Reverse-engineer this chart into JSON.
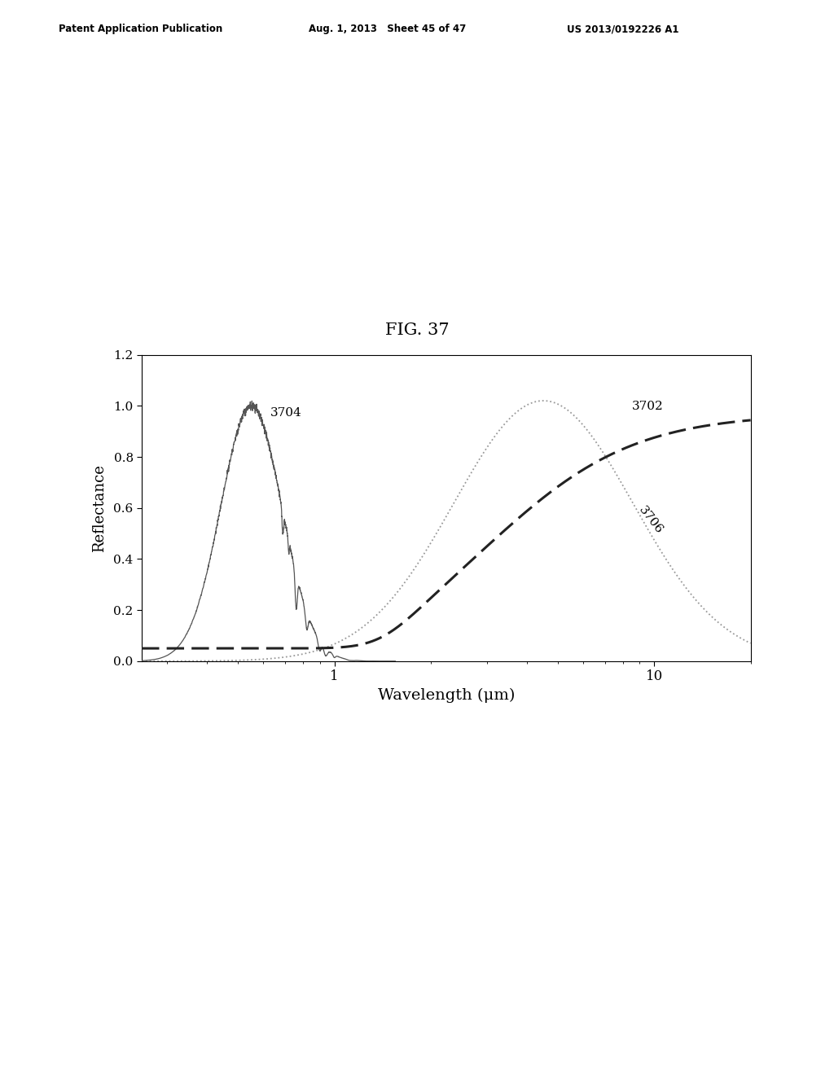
{
  "title": "FIG. 37",
  "xlabel": "Wavelength (μm)",
  "ylabel": "Reflectance",
  "xlim_log": [
    -0.602,
    1.301
  ],
  "ylim": [
    0.0,
    1.2
  ],
  "yticks": [
    0.0,
    0.2,
    0.4,
    0.6,
    0.8,
    1.0,
    1.2
  ],
  "header_left": "Patent Application Publication",
  "header_mid": "Aug. 1, 2013   Sheet 45 of 47",
  "header_right": "US 2013/0192226 A1",
  "label_3702": "3702",
  "label_3704": "3704",
  "label_3706": "3706",
  "background_color": "#ffffff"
}
